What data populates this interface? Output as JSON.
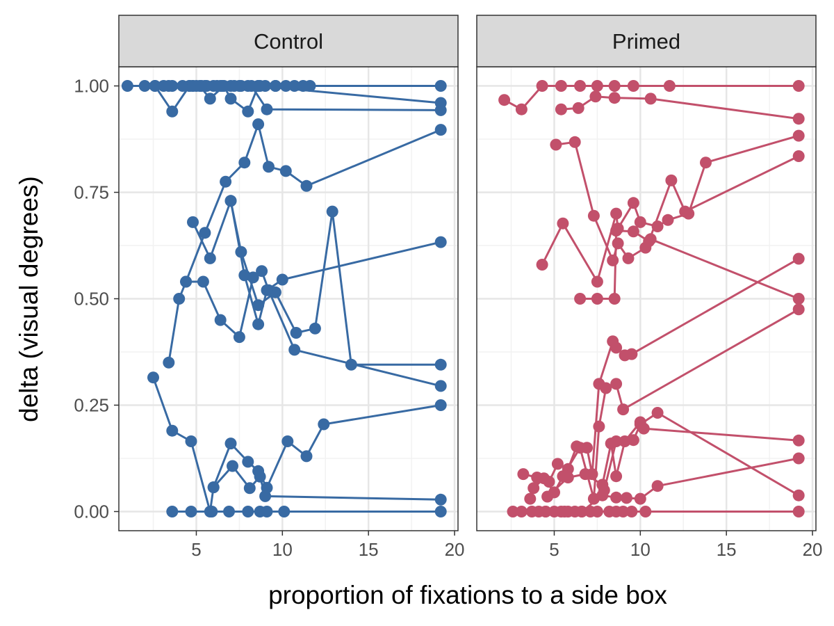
{
  "chart_data": {
    "type": "line",
    "title": "",
    "xlabel": "proportion of fixations to a side box",
    "ylabel": "delta (visual degrees)",
    "xlim": [
      0.5,
      20.2
    ],
    "ylim": [
      -0.045,
      1.045
    ],
    "x_ticks": [
      5,
      10,
      15,
      20
    ],
    "y_ticks": [
      0,
      0.25,
      0.5,
      0.75,
      1.0
    ],
    "y_tick_labels": [
      "0.00",
      "0.25",
      "0.50",
      "0.75",
      "1.00"
    ],
    "grid": true,
    "legend": "none",
    "panels": [
      {
        "label": "Control",
        "color": "#386aa3",
        "series": [
          {
            "points": [
              [
                1.0,
                1.0
              ],
              [
                2.0,
                1.0
              ],
              [
                2.6,
                1.0
              ],
              [
                3.1,
                1.0
              ],
              [
                3.6,
                1.0
              ],
              [
                4.2,
                1.0
              ],
              [
                4.6,
                1.0
              ],
              [
                5.0,
                1.0
              ],
              [
                5.5,
                1.0
              ],
              [
                6.0,
                1.0
              ],
              [
                6.5,
                1.0
              ],
              [
                7.0,
                1.0
              ],
              [
                7.5,
                1.0
              ],
              [
                8.0,
                1.0
              ],
              [
                8.6,
                1.0
              ],
              [
                9.0,
                1.0
              ],
              [
                9.6,
                1.0
              ],
              [
                10.2,
                1.0
              ],
              [
                10.7,
                1.0
              ],
              [
                11.2,
                1.0
              ],
              [
                11.6,
                1.0
              ]
            ]
          },
          {
            "points": [
              [
                2.6,
                1.0
              ],
              [
                3.6,
                0.94
              ],
              [
                4.6,
                1.0
              ],
              [
                5.2,
                1.0
              ],
              [
                5.8,
                0.97
              ],
              [
                6.6,
                1.0
              ],
              [
                7.0,
                0.97
              ],
              [
                8.0,
                0.94
              ],
              [
                8.6,
                1.0
              ],
              [
                19.2,
                0.96
              ]
            ]
          },
          {
            "points": [
              [
                3.4,
                1.0
              ],
              [
                4.8,
                1.0
              ],
              [
                5.6,
                1.0
              ],
              [
                6.2,
                1.0
              ],
              [
                7.2,
                1.0
              ],
              [
                8.2,
                1.0
              ],
              [
                9.1,
                0.945
              ],
              [
                19.2,
                0.943
              ]
            ]
          },
          {
            "points": [
              [
                4.8,
                1.0
              ],
              [
                5.3,
                1.0
              ],
              [
                6.4,
                1.0
              ],
              [
                7.6,
                1.0
              ],
              [
                8.7,
                1.0
              ],
              [
                9.6,
                1.0
              ],
              [
                19.2,
                1.0
              ]
            ]
          },
          {
            "points": [
              [
                3.4,
                0.35
              ],
              [
                4.0,
                0.5
              ],
              [
                4.4,
                0.54
              ],
              [
                5.4,
                0.54
              ],
              [
                6.4,
                0.45
              ],
              [
                7.5,
                0.41
              ],
              [
                8.3,
                0.55
              ],
              [
                8.8,
                0.565
              ],
              [
                9.2,
                0.52
              ],
              [
                10.7,
                0.38
              ],
              [
                19.2,
                0.295
              ]
            ]
          },
          {
            "points": [
              [
                4.4,
                0.54
              ],
              [
                5.5,
                0.655
              ],
              [
                6.7,
                0.775
              ],
              [
                7.8,
                0.82
              ],
              [
                8.6,
                0.91
              ],
              [
                9.2,
                0.81
              ],
              [
                10.2,
                0.8
              ],
              [
                11.4,
                0.765
              ],
              [
                19.2,
                0.897
              ]
            ]
          },
          {
            "points": [
              [
                4.8,
                0.68
              ],
              [
                5.8,
                0.595
              ],
              [
                7.0,
                0.73
              ],
              [
                7.6,
                0.61
              ],
              [
                8.6,
                0.485
              ],
              [
                9.6,
                0.515
              ],
              [
                10.8,
                0.42
              ],
              [
                11.9,
                0.43
              ],
              [
                12.9,
                0.705
              ],
              [
                14.0,
                0.345
              ],
              [
                19.2,
                0.345
              ]
            ]
          },
          {
            "points": [
              [
                7.0,
                0.73
              ],
              [
                7.8,
                0.555
              ],
              [
                8.6,
                0.44
              ],
              [
                9.1,
                0.52
              ],
              [
                10.0,
                0.545
              ],
              [
                19.2,
                0.633
              ]
            ]
          },
          {
            "points": [
              [
                2.5,
                0.315
              ],
              [
                3.6,
                0.19
              ],
              [
                4.7,
                0.165
              ],
              [
                5.8,
                0.0
              ],
              [
                6.0,
                0.057
              ],
              [
                7.0,
                0.16
              ],
              [
                8.0,
                0.117
              ],
              [
                8.6,
                0.095
              ],
              [
                9.1,
                0.056
              ],
              [
                10.3,
                0.165
              ],
              [
                11.4,
                0.13
              ],
              [
                12.4,
                0.205
              ],
              [
                19.2,
                0.25
              ]
            ]
          },
          {
            "points": [
              [
                6.0,
                0.057
              ],
              [
                7.1,
                0.107
              ],
              [
                8.1,
                0.055
              ],
              [
                8.7,
                0.082
              ],
              [
                9.0,
                0.036
              ],
              [
                19.2,
                0.028
              ]
            ]
          },
          {
            "points": [
              [
                3.6,
                0.0
              ],
              [
                4.7,
                0.0
              ],
              [
                5.9,
                0.0
              ],
              [
                6.9,
                0.0
              ],
              [
                8.0,
                0.0
              ],
              [
                8.7,
                0.0
              ],
              [
                9.1,
                0.0
              ],
              [
                10.1,
                0.0
              ],
              [
                19.2,
                0.0
              ]
            ]
          }
        ]
      },
      {
        "label": "Primed",
        "color": "#c2506b",
        "series": [
          {
            "points": [
              [
                2.1,
                0.967
              ],
              [
                3.1,
                0.945
              ],
              [
                4.3,
                1.0
              ],
              [
                5.4,
                1.0
              ],
              [
                6.5,
                1.0
              ],
              [
                7.5,
                1.0
              ],
              [
                8.5,
                1.0
              ],
              [
                9.6,
                1.0
              ],
              [
                11.7,
                1.0
              ],
              [
                19.2,
                1.0
              ]
            ]
          },
          {
            "points": [
              [
                5.4,
                0.945
              ],
              [
                6.4,
                0.948
              ],
              [
                7.4,
                0.975
              ],
              [
                8.5,
                0.972
              ],
              [
                10.6,
                0.97
              ],
              [
                19.2,
                0.923
              ]
            ]
          },
          {
            "points": [
              [
                5.1,
                0.862
              ],
              [
                6.2,
                0.868
              ],
              [
                7.3,
                0.695
              ],
              [
                8.4,
                0.59
              ],
              [
                8.7,
                0.63
              ],
              [
                9.3,
                0.595
              ],
              [
                10.3,
                0.62
              ],
              [
                10.6,
                0.64
              ],
              [
                19.2,
                0.5
              ]
            ]
          },
          {
            "points": [
              [
                4.3,
                0.58
              ],
              [
                5.5,
                0.677
              ],
              [
                7.5,
                0.54
              ],
              [
                8.6,
                0.7
              ],
              [
                8.7,
                0.665
              ],
              [
                9.6,
                0.725
              ],
              [
                10.0,
                0.68
              ],
              [
                11.0,
                0.67
              ],
              [
                11.6,
                0.685
              ],
              [
                12.8,
                0.7
              ],
              [
                13.8,
                0.82
              ],
              [
                19.2,
                0.883
              ]
            ]
          },
          {
            "points": [
              [
                6.5,
                0.5
              ],
              [
                7.5,
                0.5
              ],
              [
                8.5,
                0.5
              ],
              [
                8.6,
                0.66
              ],
              [
                9.6,
                0.658
              ],
              [
                10.5,
                0.635
              ],
              [
                11.8,
                0.778
              ],
              [
                12.6,
                0.705
              ],
              [
                19.2,
                0.835
              ]
            ]
          },
          {
            "points": [
              [
                2.6,
                0.0
              ],
              [
                3.1,
                0.0
              ],
              [
                3.7,
                0.0
              ],
              [
                4.1,
                0.0
              ],
              [
                4.5,
                0.0
              ],
              [
                5.0,
                0.0
              ],
              [
                5.4,
                0.0
              ],
              [
                5.8,
                0.0
              ],
              [
                6.2,
                0.0
              ],
              [
                6.6,
                0.0
              ],
              [
                7.1,
                0.0
              ],
              [
                7.5,
                0.0
              ],
              [
                8.2,
                0.0
              ],
              [
                8.6,
                0.0
              ],
              [
                9.0,
                0.0
              ],
              [
                9.5,
                0.0
              ],
              [
                10.3,
                0.0
              ],
              [
                19.2,
                0.0
              ]
            ]
          },
          {
            "points": [
              [
                3.2,
                0.088
              ],
              [
                4.0,
                0.08
              ],
              [
                4.7,
                0.07
              ],
              [
                5.2,
                0.112
              ],
              [
                5.8,
                0.1
              ],
              [
                6.3,
                0.153
              ],
              [
                6.9,
                0.15
              ],
              [
                7.2,
                0.088
              ],
              [
                7.6,
                0.3
              ],
              [
                8.4,
                0.4
              ],
              [
                8.6,
                0.385
              ],
              [
                9.1,
                0.367
              ],
              [
                9.5,
                0.37
              ],
              [
                19.2,
                0.594
              ]
            ]
          },
          {
            "points": [
              [
                3.6,
                0.03
              ],
              [
                3.8,
                0.055
              ],
              [
                4.4,
                0.078
              ],
              [
                5.0,
                0.045
              ],
              [
                5.5,
                0.083
              ],
              [
                6.5,
                0.15
              ],
              [
                7.3,
                0.03
              ],
              [
                7.6,
                0.2
              ],
              [
                8.0,
                0.29
              ],
              [
                8.6,
                0.3
              ],
              [
                9.0,
                0.24
              ],
              [
                19.2,
                0.475
              ]
            ]
          },
          {
            "points": [
              [
                4.6,
                0.035
              ],
              [
                5.8,
                0.08
              ],
              [
                6.8,
                0.088
              ],
              [
                7.8,
                0.063
              ],
              [
                8.3,
                0.16
              ],
              [
                8.6,
                0.083
              ],
              [
                9.1,
                0.165
              ],
              [
                10.0,
                0.21
              ],
              [
                10.2,
                0.195
              ],
              [
                19.2,
                0.167
              ]
            ]
          },
          {
            "points": [
              [
                4.5,
                0.0
              ],
              [
                5.6,
                0.0
              ],
              [
                6.6,
                0.0
              ],
              [
                7.8,
                0.038
              ],
              [
                8.6,
                0.033
              ],
              [
                9.2,
                0.032
              ],
              [
                10.0,
                0.03
              ],
              [
                11.0,
                0.06
              ],
              [
                19.2,
                0.125
              ]
            ]
          },
          {
            "points": [
              [
                7.9,
                0.05
              ],
              [
                8.6,
                0.165
              ],
              [
                9.6,
                0.168
              ],
              [
                10.0,
                0.205
              ],
              [
                11.0,
                0.232
              ],
              [
                19.2,
                0.038
              ]
            ]
          }
        ]
      }
    ]
  }
}
